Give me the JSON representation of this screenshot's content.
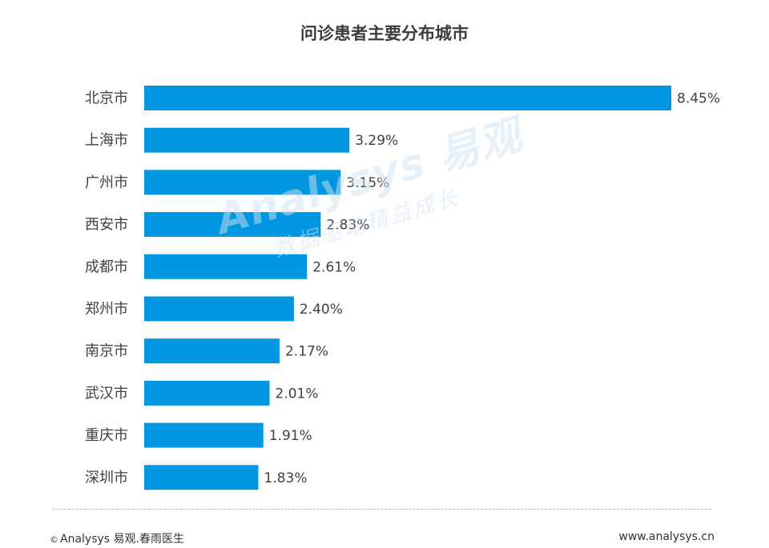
{
  "chart_data": {
    "type": "bar",
    "orientation": "horizontal",
    "title": "问诊患者主要分布城市",
    "categories": [
      "北京市",
      "上海市",
      "广州市",
      "西安市",
      "成都市",
      "郑州市",
      "南京市",
      "武汉市",
      "重庆市",
      "深圳市"
    ],
    "values": [
      8.45,
      3.29,
      3.15,
      2.83,
      2.61,
      2.4,
      2.17,
      2.01,
      1.91,
      1.83
    ],
    "value_labels": [
      "8.45%",
      "3.29%",
      "3.15%",
      "2.83%",
      "2.61%",
      "2.40%",
      "2.17%",
      "2.01%",
      "1.91%",
      "1.83%"
    ],
    "xlim": [
      0,
      8.45
    ],
    "bar_color": "#0097e0",
    "grid": false,
    "legend": "none"
  },
  "watermark": {
    "main": "Analysys 易观",
    "sub": "数据驱动精益成长"
  },
  "footer": {
    "copyright_symbol": "©",
    "source": "Analysys 易观.春雨医生",
    "url": "www.analysys.cn"
  }
}
